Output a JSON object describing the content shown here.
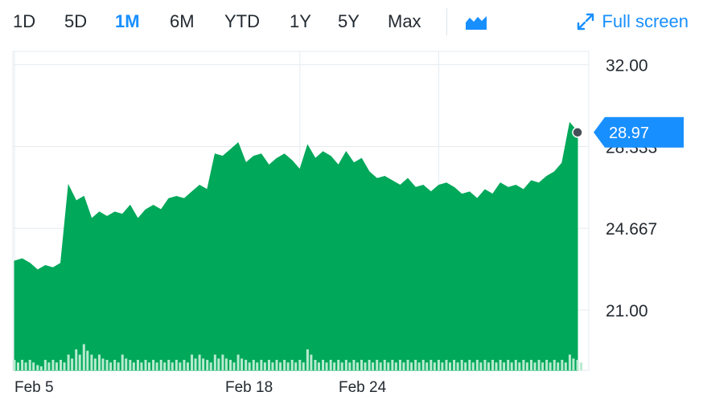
{
  "toolbar": {
    "ranges": [
      "1D",
      "5D",
      "1M",
      "6M",
      "YTD",
      "1Y",
      "5Y",
      "Max"
    ],
    "active_range": "1M",
    "chart_type_icon": "mountain-chart-icon",
    "fullscreen_label": "Full screen",
    "fullscreen_icon": "expand-arrows-icon"
  },
  "colors": {
    "area_fill": "#00a85a",
    "volume_bar": "#b8ebcf",
    "accent": "#188fff",
    "grid": "#e6ebef"
  },
  "chart_data": {
    "type": "area",
    "y_ticks": [
      "32.00",
      "28.333",
      "24.667",
      "21.00"
    ],
    "ylim": [
      18.3,
      32.6
    ],
    "x_ticks": [
      "Feb 5",
      "Feb 18",
      "Feb 24"
    ],
    "last_price": "28.97",
    "last_value": 28.97,
    "price_series": [
      23.2,
      23.3,
      23.1,
      22.8,
      23.0,
      22.9,
      23.1,
      26.6,
      25.9,
      26.1,
      25.1,
      25.4,
      25.2,
      25.4,
      25.3,
      25.7,
      25.1,
      25.5,
      25.7,
      25.5,
      26.0,
      26.1,
      26.0,
      26.3,
      26.6,
      26.4,
      28.0,
      27.9,
      28.2,
      28.5,
      27.6,
      27.9,
      28.0,
      27.5,
      27.8,
      28.0,
      27.7,
      27.3,
      28.4,
      27.8,
      28.1,
      27.9,
      27.5,
      28.1,
      27.6,
      27.8,
      27.2,
      26.9,
      27.0,
      26.8,
      26.6,
      26.9,
      26.5,
      26.6,
      26.3,
      26.6,
      26.7,
      26.5,
      26.2,
      26.3,
      26.0,
      26.4,
      26.2,
      26.7,
      26.5,
      26.6,
      26.4,
      26.8,
      26.7,
      27.0,
      27.2,
      27.6,
      29.4,
      29.0
    ],
    "volume_series": [
      2,
      2,
      2,
      1,
      2,
      2,
      2,
      3,
      4,
      5,
      3,
      3,
      2,
      2,
      3,
      2,
      2,
      2,
      2,
      2,
      2,
      2,
      2,
      3,
      3,
      2,
      3,
      3,
      2,
      3,
      2,
      2,
      2,
      2,
      2,
      2,
      2,
      2,
      4,
      2,
      2,
      2,
      2,
      2,
      2,
      2,
      2,
      2,
      2,
      2,
      2,
      2,
      2,
      2,
      2,
      2,
      2,
      2,
      2,
      2,
      2,
      2,
      2,
      2,
      2,
      2,
      2,
      2,
      2,
      2,
      2,
      2,
      3,
      2
    ]
  }
}
